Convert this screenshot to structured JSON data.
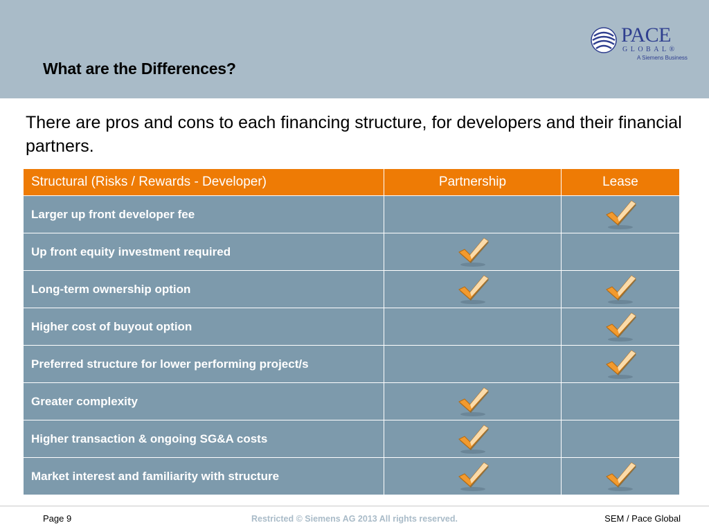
{
  "slide": {
    "title": "What are the Differences?",
    "intro": "There are pros and cons to each financing structure, for developers and their financial partners."
  },
  "logo": {
    "word": "PACE",
    "sub": "GLOBAL®",
    "tag": "A Siemens Business",
    "icon": "pace-global-globe-icon",
    "color": "#2f3f8f"
  },
  "table": {
    "headers": [
      "Structural (Risks / Rewards - Developer)",
      "Partnership",
      "Lease"
    ],
    "rows": [
      {
        "label": "Larger up front developer fee",
        "partnership": false,
        "lease": true
      },
      {
        "label": "Up front equity investment required",
        "partnership": true,
        "lease": false
      },
      {
        "label": "Long-term ownership option",
        "partnership": true,
        "lease": true
      },
      {
        "label": "Higher cost of buyout option",
        "partnership": false,
        "lease": true
      },
      {
        "label": "Preferred structure for lower performing project/s",
        "partnership": false,
        "lease": true
      },
      {
        "label": "Greater complexity",
        "partnership": true,
        "lease": false
      },
      {
        "label": "Higher transaction & ongoing SG&A costs",
        "partnership": true,
        "lease": false
      },
      {
        "label": "Market interest and familiarity with structure",
        "partnership": true,
        "lease": true
      }
    ],
    "check_icon": "checkmark-icon",
    "colors": {
      "header_bg": "#ee7b05",
      "cell_bg": "#7d9aac",
      "check": "#f0a030"
    }
  },
  "footer": {
    "page": "Page 9",
    "restricted": "Restricted © Siemens AG 2013 All rights reserved.",
    "right": "SEM / Pace Global"
  }
}
